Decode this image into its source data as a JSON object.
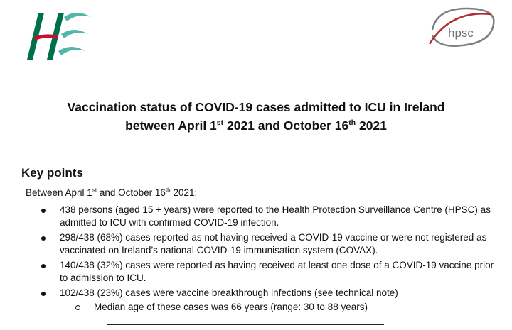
{
  "logos": {
    "left": {
      "icon": "hse-logo-icon",
      "text": "HSE",
      "colors": [
        "#c8102e",
        "#00704a",
        "#52b7a8"
      ]
    },
    "right": {
      "icon": "hpsc-logo-icon",
      "text": "hpsc",
      "colors": [
        "#7a7f84",
        "#b32d2e"
      ]
    }
  },
  "title": {
    "line1": "Vaccination status of COVID-19 cases admitted to ICU in Ireland",
    "line2_prefix": "between April 1",
    "line2_sup1": "st",
    "line2_middle": " 2021 and October 16",
    "line2_sup2": "th",
    "line2_suffix": " 2021"
  },
  "key_points": {
    "heading": "Key points",
    "intro_prefix": "Between April 1",
    "intro_sup1": "st",
    "intro_middle": " and October 16",
    "intro_sup2": "th",
    "intro_suffix": " 2021:",
    "bullets": [
      "438 persons (aged 15 + years) were reported to the Health Protection Surveillance Centre (HPSC) as admitted to ICU with confirmed COVID-19 infection.",
      "298/438 (68%) cases reported as not having received a COVID-19 vaccine or were not registered as vaccinated on Ireland’s national COVID-19 immunisation system (COVAX).",
      "140/438 (32%) cases were reported as having received at least one dose of a COVID-19 vaccine prior to admission to ICU.",
      "102/438 (23%) cases were vaccine breakthrough infections (see technical note)"
    ],
    "sub_bullets": [
      "Median age of these cases was 66 years (range: 30 to 88 years)"
    ]
  }
}
